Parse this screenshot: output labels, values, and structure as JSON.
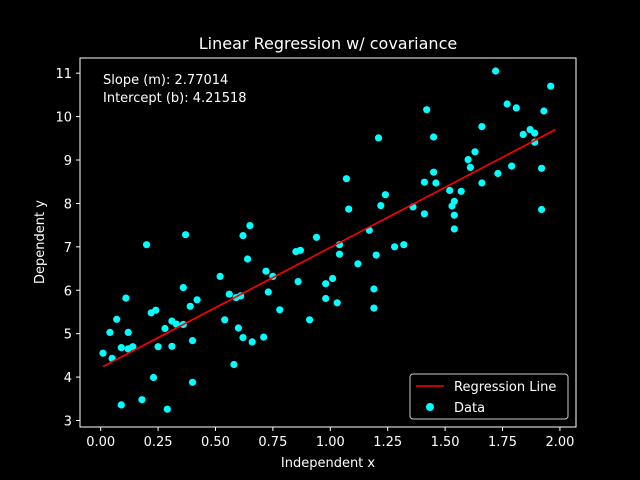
{
  "chart_data": {
    "type": "scatter",
    "title": "Linear Regression w/ covariance",
    "xlabel": "Independent x",
    "ylabel": "Dependent y",
    "xlim": [
      -0.09,
      2.07
    ],
    "ylim": [
      2.85,
      11.35
    ],
    "xticks": [
      "0.00",
      "0.25",
      "0.50",
      "0.75",
      "1.00",
      "1.25",
      "1.50",
      "1.75",
      "2.00"
    ],
    "xtick_values": [
      0,
      0.25,
      0.5,
      0.75,
      1.0,
      1.25,
      1.5,
      1.75,
      2.0
    ],
    "yticks": [
      "3",
      "4",
      "5",
      "6",
      "7",
      "8",
      "9",
      "10",
      "11"
    ],
    "ytick_values": [
      3,
      4,
      5,
      6,
      7,
      8,
      9,
      10,
      11
    ],
    "annotations": {
      "slope": "Slope (m): 2.77014",
      "intercept": "Intercept (b): 4.21518"
    },
    "regression": {
      "slope": 2.77014,
      "intercept": 4.21518,
      "x_range": [
        0.01,
        1.98
      ],
      "color": "#ff0000"
    },
    "legend": {
      "placement": "lower-right",
      "line_label": "Regression Line",
      "scatter_label": "Data"
    },
    "series": [
      {
        "name": "Data",
        "color": "#00ffff",
        "points": [
          [
            0.01,
            4.55
          ],
          [
            0.04,
            5.03
          ],
          [
            0.05,
            4.43
          ],
          [
            0.07,
            5.33
          ],
          [
            0.09,
            3.36
          ],
          [
            0.09,
            4.68
          ],
          [
            0.11,
            5.82
          ],
          [
            0.12,
            5.03
          ],
          [
            0.12,
            4.65
          ],
          [
            0.14,
            4.7
          ],
          [
            0.18,
            3.48
          ],
          [
            0.2,
            7.05
          ],
          [
            0.22,
            5.48
          ],
          [
            0.23,
            3.99
          ],
          [
            0.24,
            5.54
          ],
          [
            0.25,
            4.7
          ],
          [
            0.28,
            5.12
          ],
          [
            0.29,
            3.26
          ],
          [
            0.31,
            4.71
          ],
          [
            0.31,
            5.29
          ],
          [
            0.33,
            5.22
          ],
          [
            0.36,
            6.06
          ],
          [
            0.36,
            5.21
          ],
          [
            0.37,
            7.28
          ],
          [
            0.39,
            5.63
          ],
          [
            0.4,
            3.88
          ],
          [
            0.4,
            4.84
          ],
          [
            0.42,
            5.78
          ],
          [
            0.52,
            6.32
          ],
          [
            0.54,
            5.32
          ],
          [
            0.56,
            5.91
          ],
          [
            0.58,
            4.29
          ],
          [
            0.59,
            5.83
          ],
          [
            0.6,
            5.13
          ],
          [
            0.61,
            5.87
          ],
          [
            0.62,
            7.26
          ],
          [
            0.62,
            4.91
          ],
          [
            0.64,
            6.72
          ],
          [
            0.65,
            7.49
          ],
          [
            0.66,
            4.81
          ],
          [
            0.71,
            4.92
          ],
          [
            0.72,
            6.44
          ],
          [
            0.73,
            5.96
          ],
          [
            0.75,
            6.32
          ],
          [
            0.78,
            5.55
          ],
          [
            0.85,
            6.89
          ],
          [
            0.86,
            6.2
          ],
          [
            0.87,
            6.92
          ],
          [
            0.91,
            5.32
          ],
          [
            0.94,
            7.22
          ],
          [
            0.98,
            6.15
          ],
          [
            0.98,
            5.81
          ],
          [
            1.01,
            6.27
          ],
          [
            1.03,
            5.71
          ],
          [
            1.04,
            7.05
          ],
          [
            1.04,
            6.83
          ],
          [
            1.07,
            8.57
          ],
          [
            1.08,
            7.87
          ],
          [
            1.12,
            6.61
          ],
          [
            1.17,
            7.38
          ],
          [
            1.19,
            6.03
          ],
          [
            1.19,
            5.59
          ],
          [
            1.2,
            6.81
          ],
          [
            1.21,
            9.51
          ],
          [
            1.22,
            7.95
          ],
          [
            1.24,
            8.2
          ],
          [
            1.28,
            7.0
          ],
          [
            1.32,
            7.05
          ],
          [
            1.36,
            7.92
          ],
          [
            1.41,
            8.49
          ],
          [
            1.41,
            7.76
          ],
          [
            1.42,
            10.16
          ],
          [
            1.45,
            9.53
          ],
          [
            1.45,
            8.72
          ],
          [
            1.46,
            8.47
          ],
          [
            1.52,
            8.3
          ],
          [
            1.53,
            7.94
          ],
          [
            1.54,
            8.05
          ],
          [
            1.54,
            7.73
          ],
          [
            1.54,
            7.41
          ],
          [
            1.57,
            8.28
          ],
          [
            1.6,
            9.01
          ],
          [
            1.61,
            8.83
          ],
          [
            1.63,
            9.19
          ],
          [
            1.66,
            9.77
          ],
          [
            1.66,
            8.47
          ],
          [
            1.72,
            11.05
          ],
          [
            1.73,
            8.69
          ],
          [
            1.77,
            10.29
          ],
          [
            1.79,
            8.86
          ],
          [
            1.81,
            10.2
          ],
          [
            1.84,
            9.59
          ],
          [
            1.87,
            9.7
          ],
          [
            1.89,
            9.62
          ],
          [
            1.89,
            9.41
          ],
          [
            1.92,
            7.86
          ],
          [
            1.92,
            8.81
          ],
          [
            1.93,
            10.13
          ],
          [
            1.96,
            10.7
          ]
        ]
      }
    ]
  }
}
